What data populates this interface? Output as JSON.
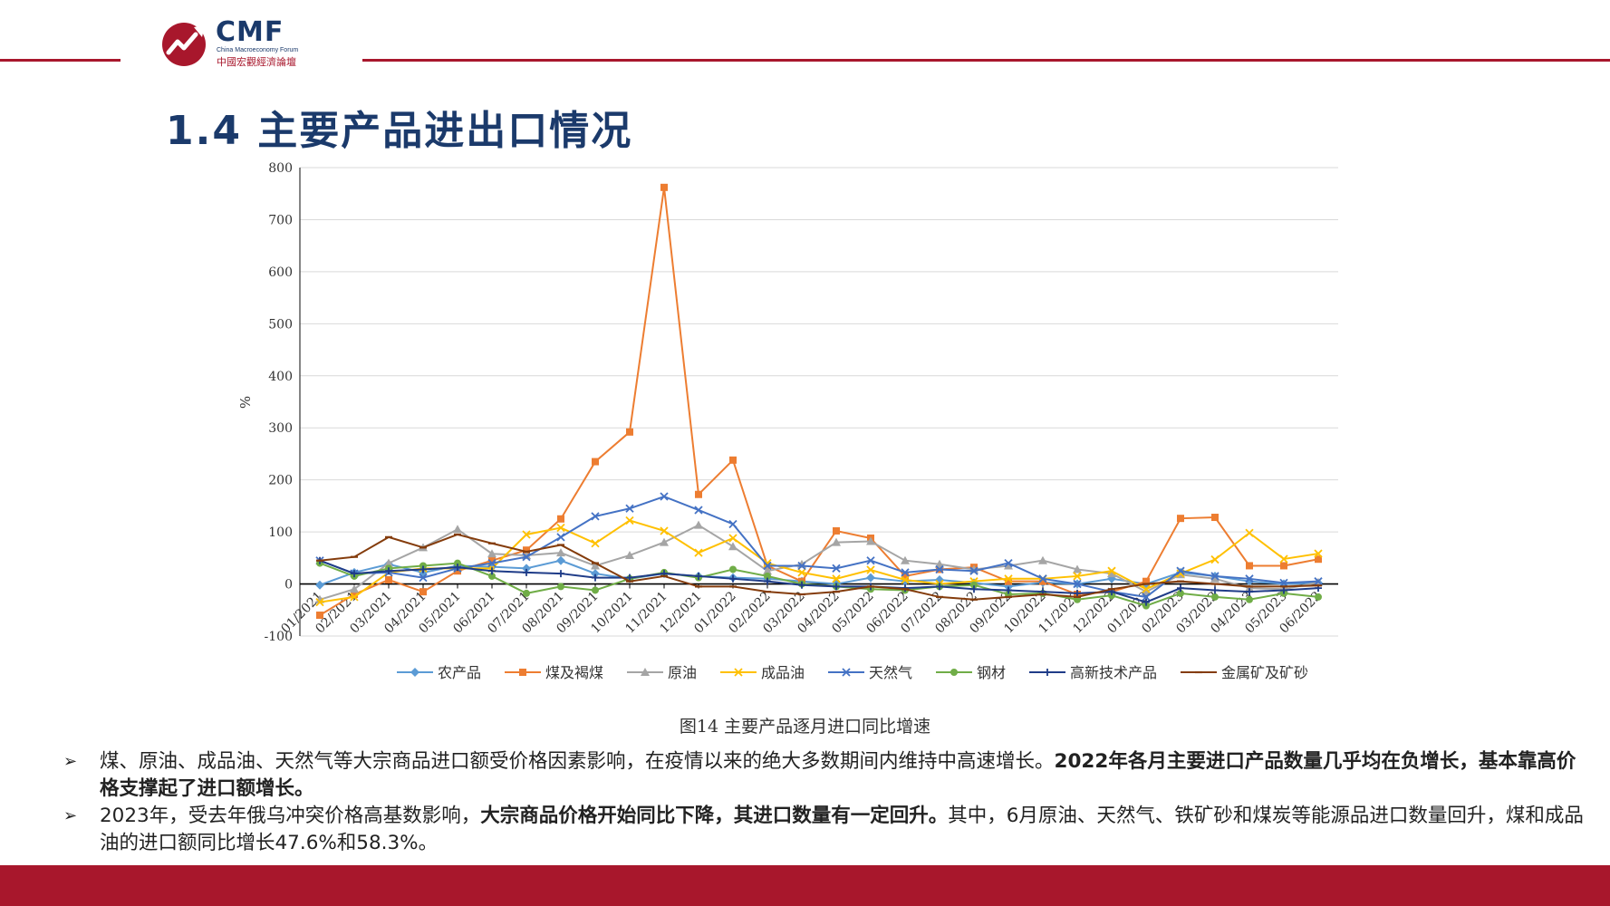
{
  "header": {
    "logo_text": "CMF",
    "logo_subtitle": "China Macroeconomy Forum",
    "logo_cn": "中國宏觀經濟論壇"
  },
  "page": {
    "title": "1.4 主要产品进出口情况",
    "figure_caption": "图14   主要产品逐月进口同比增速"
  },
  "bullets": [
    {
      "text_a": "煤、原油、成品油、天然气等大宗商品进口额受价格因素影响，在疫情以来的绝大多数期间内维持中高速增长。",
      "bold_a": "2022年各月主要进口产品数量几乎均在负增长，基本靠高价格支撑起了进口额增长。",
      "text_b": "",
      "bold_b": "",
      "text_c": ""
    },
    {
      "text_a": "2023年，受去年俄乌冲突价格高基数影响，",
      "bold_a": "大宗商品价格开始同比下降，其进口数量有一定回升。",
      "text_b": "其中，6月原油、天然气、铁矿砂和煤炭等能源品进口数量回升，煤和成品油的进口额同比增长47.6%和58.3%。",
      "bold_b": "",
      "text_c": ""
    }
  ],
  "colors": {
    "brand_red": "#a8172c",
    "brand_blue": "#1b3a6b"
  },
  "chart_data": {
    "type": "line",
    "title": "",
    "xlabel": "",
    "ylabel": "%",
    "ylim": [
      -100,
      800
    ],
    "yticks": [
      -100,
      0,
      100,
      200,
      300,
      400,
      500,
      600,
      700,
      800
    ],
    "grid": true,
    "legend_position": "bottom",
    "categories": [
      "01/2021",
      "02/2021",
      "03/2021",
      "04/2021",
      "05/2021",
      "06/2021",
      "07/2021",
      "08/2021",
      "09/2021",
      "10/2021",
      "11/2021",
      "12/2021",
      "01/2022",
      "02/2022",
      "03/2022",
      "04/2022",
      "05/2022",
      "06/2022",
      "07/2022",
      "08/2022",
      "09/2022",
      "10/2022",
      "11/2022",
      "12/2022",
      "01/2023",
      "02/2023",
      "03/2023",
      "04/2023",
      "05/2023",
      "06/2023"
    ],
    "series": [
      {
        "name": "农产品",
        "color": "#5b9bd5",
        "marker": "diamond",
        "values": [
          -2,
          22,
          38,
          22,
          35,
          33,
          30,
          45,
          20,
          10,
          20,
          15,
          12,
          10,
          5,
          0,
          12,
          5,
          8,
          2,
          -5,
          3,
          0,
          10,
          0,
          22,
          15,
          5,
          0,
          2
        ]
      },
      {
        "name": "煤及褐煤",
        "color": "#ed7d31",
        "marker": "square",
        "values": [
          -60,
          -20,
          8,
          -15,
          25,
          45,
          65,
          125,
          235,
          292,
          762,
          172,
          238,
          35,
          5,
          102,
          88,
          15,
          28,
          32,
          5,
          5,
          -20,
          -15,
          5,
          126,
          128,
          35,
          35,
          47.6
        ]
      },
      {
        "name": "原油",
        "color": "#a5a5a5",
        "marker": "triangle",
        "values": [
          -30,
          -10,
          40,
          70,
          105,
          58,
          55,
          60,
          35,
          55,
          80,
          113,
          72,
          25,
          38,
          80,
          82,
          45,
          38,
          28,
          35,
          45,
          28,
          20,
          -15,
          18,
          10,
          -8,
          -10,
          3
        ]
      },
      {
        "name": "成品油",
        "color": "#ffc000",
        "marker": "x",
        "values": [
          -35,
          -25,
          22,
          30,
          30,
          30,
          95,
          108,
          78,
          122,
          102,
          60,
          88,
          40,
          22,
          10,
          27,
          8,
          0,
          5,
          10,
          10,
          15,
          25,
          -10,
          20,
          47,
          98,
          48,
          58.3
        ]
      },
      {
        "name": "天然气",
        "color": "#4472c4",
        "marker": "x",
        "values": [
          45,
          20,
          22,
          12,
          30,
          40,
          52,
          90,
          130,
          145,
          168,
          142,
          115,
          35,
          35,
          30,
          45,
          22,
          28,
          25,
          40,
          10,
          0,
          -15,
          -25,
          25,
          15,
          10,
          2,
          5
        ]
      },
      {
        "name": "钢材",
        "color": "#70ad47",
        "marker": "circle",
        "values": [
          40,
          15,
          30,
          35,
          40,
          15,
          -18,
          -5,
          -12,
          10,
          22,
          12,
          28,
          15,
          0,
          -5,
          -10,
          -12,
          -5,
          -2,
          -20,
          -18,
          -30,
          -22,
          -42,
          -18,
          -25,
          -30,
          -18,
          -25
        ]
      },
      {
        "name": "高新技术产品",
        "color": "#1f3c88",
        "marker": "plus",
        "values": [
          45,
          20,
          25,
          28,
          32,
          25,
          22,
          20,
          12,
          12,
          20,
          15,
          10,
          5,
          -2,
          -5,
          -5,
          -8,
          -5,
          -10,
          -12,
          -15,
          -18,
          -15,
          -35,
          -8,
          -12,
          -15,
          -12,
          -8
        ]
      },
      {
        "name": "金属矿及矿砂",
        "color": "#843c0c",
        "marker": "dash",
        "values": [
          45,
          52,
          90,
          70,
          95,
          78,
          62,
          75,
          40,
          5,
          15,
          -5,
          -5,
          -15,
          -20,
          -15,
          -5,
          -10,
          -25,
          -30,
          -25,
          -20,
          -25,
          -10,
          0,
          5,
          0,
          -5,
          -5,
          -3
        ]
      }
    ]
  }
}
